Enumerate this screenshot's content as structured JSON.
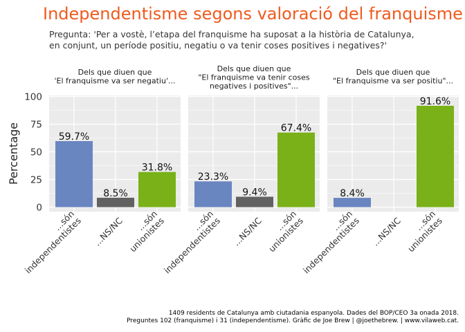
{
  "title": "Independentisme segons valoració del franquisme",
  "subtitle": "Pregunta: 'Per a vostè, l’etapa del franquisme ha suposat a la història de Catalunya,\nen conjunt, un període positiu, negatiu o va tenir coses positives i negatives?'",
  "caption": {
    "line1": "1409 residents de Catalunya amb ciutadania espanyola. Dades del BOP/CEO 3a onada 2018.",
    "line2": "Preguntes 102 (franquisme) i 31 (independentisme). Gràfic de Joe Brew | @joethebrew. |  www.vilaweb.cat."
  },
  "colors": {
    "title": "#f05a1e",
    "panel_bg": "#ebebeb",
    "grid": "#ffffff",
    "independentistes": "#6a86c1",
    "ns_nc": "#616161",
    "unionistes": "#7ab118"
  },
  "chart_data": {
    "type": "bar",
    "ylabel": "Percentage",
    "ylim": [
      0,
      100
    ],
    "yticks": [
      0,
      25,
      50,
      75,
      100
    ],
    "categories": [
      [
        "...són",
        "independentistes"
      ],
      [
        "...NS/NC"
      ],
      [
        "...són",
        "unionistes"
      ]
    ],
    "category_keys": [
      "independentistes",
      "ns_nc",
      "unionistes"
    ],
    "panels": [
      {
        "title": [
          "Dels que diuen que",
          "'El franquisme va ser negatiu'..."
        ],
        "values": [
          59.7,
          8.5,
          31.8
        ],
        "labels": [
          "59.7%",
          "8.5%",
          "31.8%"
        ]
      },
      {
        "title": [
          "Dels que diuen que",
          "\"El franquisme va tenir coses",
          "negatives i positives\"..."
        ],
        "values": [
          23.3,
          9.4,
          67.4
        ],
        "labels": [
          "23.3%",
          "9.4%",
          "67.4%"
        ]
      },
      {
        "title": [
          "Dels que diuen que",
          "\"El franquisme va ser positiu\"..."
        ],
        "values": [
          8.4,
          0,
          91.6
        ],
        "labels": [
          "8.4%",
          "",
          "91.6%"
        ]
      }
    ]
  }
}
